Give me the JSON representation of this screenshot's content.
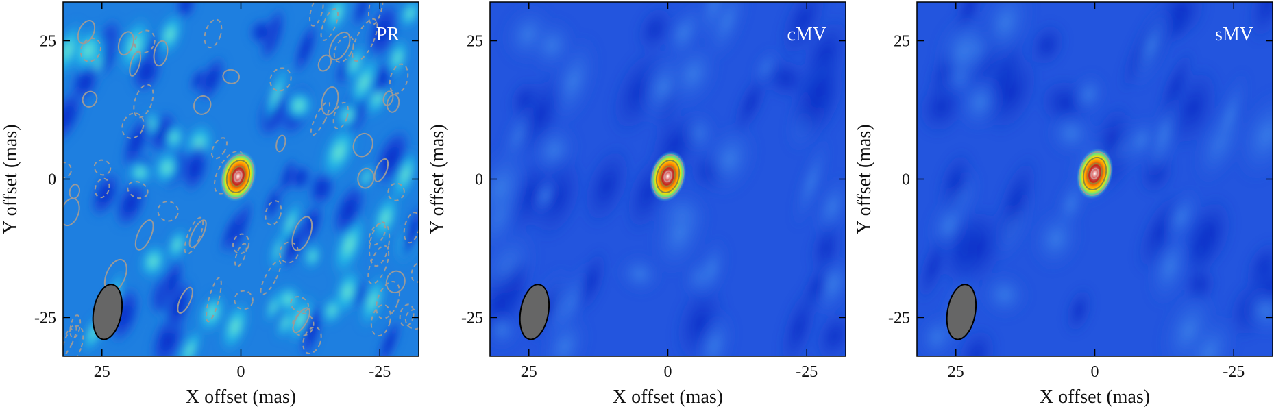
{
  "chart_data": [
    {
      "type": "heatmap",
      "panel_label": "PR",
      "xlabel": "X offset (mas)",
      "ylabel": "Y offset (mas)",
      "xlim": [
        32,
        -32
      ],
      "ylim": [
        -32,
        32
      ],
      "xticks": [
        25,
        0,
        -25
      ],
      "xtick_labels": [
        "25",
        "0",
        "-25"
      ],
      "yticks": [
        25,
        0,
        -25
      ],
      "ytick_labels": [
        "25",
        "0",
        "-25"
      ],
      "peak": {
        "x": 0.5,
        "y": 0.5
      },
      "background": "noisy",
      "colormap": "jet",
      "beam": {
        "x": 24,
        "y": -24,
        "major": 10,
        "minor": 5,
        "angle_deg": 10,
        "fill": "#666666"
      },
      "contours": "solid positive and dashed negative"
    },
    {
      "type": "heatmap",
      "panel_label": "cMV",
      "xlabel": "X offset (mas)",
      "ylabel": "Y offset (mas)",
      "xlim": [
        32,
        -32
      ],
      "ylim": [
        -32,
        32
      ],
      "xticks": [
        25,
        0,
        -25
      ],
      "xtick_labels": [
        "25",
        "0",
        "-25"
      ],
      "yticks": [
        25,
        0,
        -25
      ],
      "ytick_labels": [
        "25",
        "0",
        "-25"
      ],
      "peak": {
        "x": 0,
        "y": 0.5
      },
      "background": "smooth",
      "colormap": "jet",
      "beam": {
        "x": 24,
        "y": -24,
        "major": 10,
        "minor": 5,
        "angle_deg": 10,
        "fill": "#666666"
      },
      "contours": "solid positive"
    },
    {
      "type": "heatmap",
      "panel_label": "sMV",
      "xlabel": "X offset (mas)",
      "ylabel": "Y offset (mas)",
      "xlim": [
        32,
        -32
      ],
      "ylim": [
        -32,
        32
      ],
      "xticks": [
        25,
        0,
        -25
      ],
      "xtick_labels": [
        "25",
        "0",
        "-25"
      ],
      "yticks": [
        25,
        0,
        -25
      ],
      "ytick_labels": [
        "25",
        "0",
        "-25"
      ],
      "peak": {
        "x": 0,
        "y": 1
      },
      "background": "smooth",
      "colormap": "jet",
      "beam": {
        "x": 24,
        "y": -24,
        "major": 10,
        "minor": 5,
        "angle_deg": 10,
        "fill": "#666666"
      },
      "contours": "solid positive"
    }
  ]
}
